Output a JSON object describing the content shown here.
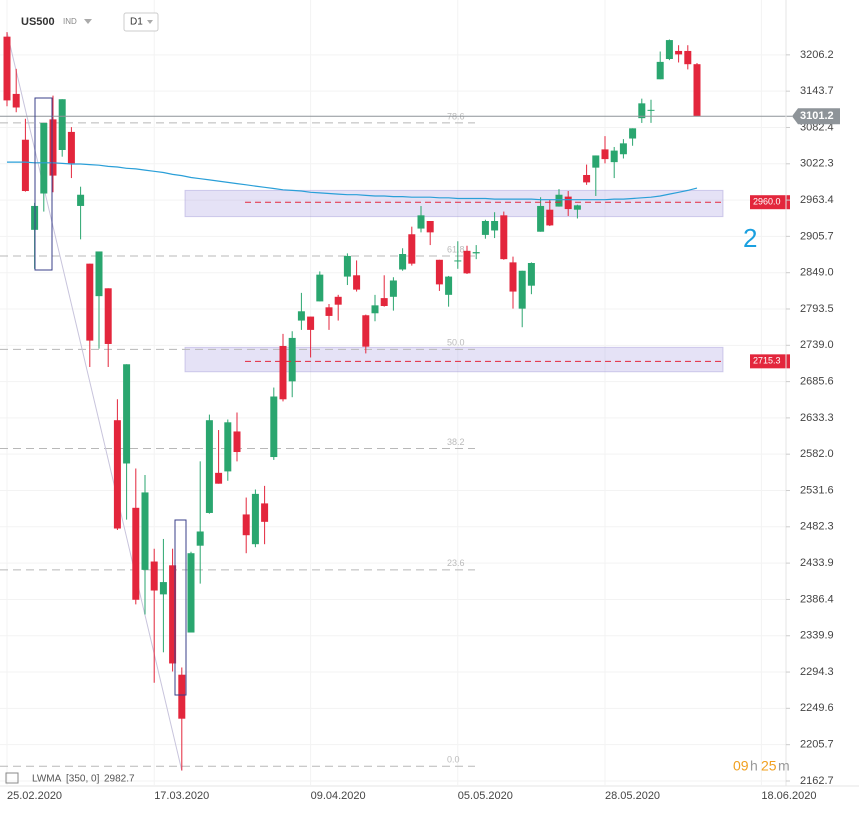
{
  "chart_data": {
    "type": "candlestick",
    "symbol": "US500",
    "symbol_type": "IND",
    "timeframe": "D1",
    "categories": [
      "25.02.2020",
      null,
      null,
      null,
      null,
      null,
      null,
      null,
      null,
      null,
      null,
      null,
      null,
      null,
      null,
      null,
      "17.03.2020",
      null,
      null,
      null,
      null,
      null,
      null,
      null,
      null,
      null,
      null,
      null,
      null,
      null,
      null,
      null,
      null,
      "09.04.2020",
      null,
      null,
      null,
      null,
      null,
      null,
      null,
      null,
      null,
      null,
      null,
      null,
      null,
      null,
      null,
      "05.05.2020",
      null,
      null,
      null,
      null,
      null,
      null,
      null,
      null,
      null,
      null,
      null,
      null,
      null,
      null,
      null,
      "28.05.2020",
      null,
      null,
      null,
      null,
      null,
      null,
      null,
      null,
      null,
      null,
      null,
      null,
      null,
      null,
      null,
      null,
      "18.06.2020"
    ],
    "open": [
      3238,
      3139,
      3062,
      2916,
      2974,
      3096,
      3045,
      3075,
      2954,
      2863,
      2813,
      2825,
      2630,
      2569,
      2508,
      2425,
      2436,
      2393,
      2431,
      2291,
      2344,
      2457,
      2501,
      2556,
      2558,
      2614,
      2499,
      2459,
      2514,
      2578,
      2738,
      2686,
      2776,
      2782,
      2805,
      2796,
      2812,
      2843,
      2845,
      2784,
      2787,
      2810,
      2812,
      2854,
      2909,
      2918,
      2930,
      2869,
      2815,
      2868,
      2883,
      2879,
      2908,
      2915,
      2939,
      2865,
      2794,
      2829,
      2913,
      2948,
      2953,
      2969,
      2948,
      3004,
      3016,
      3046,
      3025,
      3038,
      3064,
      3098,
      3111,
      3164,
      3199,
      3213,
      3213,
      3190,
      null,
      null,
      null,
      null,
      null,
      null,
      null
    ],
    "high": [
      3246,
      3182,
      3097,
      2959,
      3090,
      3136,
      3130,
      3083,
      2985,
      2863,
      2882,
      2825,
      2660,
      2711,
      2562,
      2553,
      2453,
      2466,
      2453,
      2300,
      2449,
      2572,
      2638,
      2616,
      2631,
      2641,
      2522,
      2533,
      2538,
      2677,
      2756,
      2760,
      2818,
      2782,
      2851,
      2801,
      2815,
      2879,
      2868,
      2785,
      2815,
      2845,
      2842,
      2887,
      2921,
      2954,
      2930,
      2869,
      2844,
      2898,
      2891,
      2892,
      2932,
      2944,
      2945,
      2874,
      2852,
      2865,
      2968,
      2964,
      2981,
      2978,
      2956,
      3021,
      3036,
      3068,
      3050,
      3063,
      3081,
      3131,
      3129,
      3212,
      3233,
      3223,
      3223,
      3192,
      null,
      null,
      null,
      null,
      null,
      null,
      null
    ],
    "low": [
      3118,
      3108,
      2977,
      2855,
      2945,
      2976,
      3034,
      2999,
      2901,
      2707,
      2734,
      2707,
      2478,
      2492,
      2380,
      2367,
      2281,
      2319,
      2295,
      2175,
      2344,
      2407,
      2500,
      2541,
      2545,
      2572,
      2447,
      2455,
      2459,
      2574,
      2657,
      2663,
      2762,
      2721,
      2805,
      2762,
      2776,
      2830,
      2820,
      2727,
      2775,
      2797,
      2791,
      2852,
      2860,
      2912,
      2892,
      2821,
      2797,
      2855,
      2847,
      2870,
      2902,
      2903,
      2869,
      2794,
      2766,
      2816,
      2913,
      2922,
      2953,
      2938,
      2934,
      2988,
      2970,
      3023,
      2999,
      3031,
      3052,
      3090,
      3090,
      3164,
      3197,
      3193,
      3181,
      3101,
      null,
      null,
      null,
      null,
      null,
      null,
      null
    ],
    "close": [
      3128,
      3116,
      2978,
      2954,
      3090,
      3003,
      3130,
      3023,
      2972,
      2746,
      2882,
      2741,
      2480,
      2711,
      2386,
      2529,
      2398,
      2409,
      2305,
      2237,
      2447,
      2476,
      2630,
      2541,
      2627,
      2585,
      2471,
      2527,
      2489,
      2664,
      2660,
      2750,
      2790,
      2762,
      2846,
      2783,
      2800,
      2875,
      2823,
      2737,
      2799,
      2798,
      2837,
      2878,
      2863,
      2939,
      2912,
      2831,
      2843,
      2868,
      2848,
      2881,
      2930,
      2930,
      2870,
      2820,
      2852,
      2864,
      2954,
      2923,
      2972,
      2949,
      2955,
      2992,
      3036,
      3030,
      3044,
      3056,
      3081,
      3123,
      3112,
      3194,
      3232,
      3207,
      3190,
      3101.2,
      null,
      null,
      null,
      null,
      null,
      null,
      null
    ],
    "colors": {
      "up": "#2aa66f",
      "down": "#e3263c"
    },
    "log_scale": true,
    "ylim": [
      2158,
      3303
    ],
    "yticks": [
      3206.2,
      3143.7,
      3082.4,
      3022.3,
      2963.4,
      2905.7,
      {
        "value": 2849,
        "label": "2849.0"
      },
      2793.5,
      {
        "value": 2739,
        "label": "2739.0"
      },
      2685.6,
      2633.3,
      {
        "value": 2582,
        "label": "2582.0"
      },
      2531.6,
      2482.3,
      2433.9,
      2386.4,
      2339.9,
      2294.3,
      2249.6,
      2205.7,
      2162.7
    ],
    "grid": true,
    "indicator": {
      "name": "LWMA",
      "params": "[350, 0]",
      "last_value": 2982.7,
      "color": "#2a9fd8",
      "values": [
        3025,
        3025,
        3025,
        3024,
        3024,
        3024,
        3023,
        3022,
        3022,
        3021,
        3020,
        3018,
        3017,
        3015,
        3014,
        3012,
        3010,
        3008,
        3005,
        3003,
        3000,
        2998,
        2996,
        2994,
        2992,
        2990,
        2988,
        2986,
        2984,
        2982,
        2980,
        2979,
        2978,
        2976,
        2975,
        2974,
        2973,
        2972,
        2972,
        2971,
        2970,
        2970,
        2969,
        2969,
        2968,
        2968,
        2968,
        2967,
        2967,
        2966,
        2966,
        2966,
        2966,
        2965,
        2965,
        2965,
        2965,
        2965,
        2964,
        2964,
        2964,
        2964,
        2964,
        2964,
        2964,
        2964,
        2965,
        2965,
        2966,
        2967,
        2968,
        2970,
        2973,
        2976,
        2979,
        2982.7,
        null,
        null,
        null,
        null,
        null,
        null,
        null
      ]
    },
    "current_price": 3101.2,
    "levels": [
      {
        "value": 2960,
        "label": "2960.0"
      },
      2715.3
    ],
    "zones": [
      [
        2937,
        2979
      ],
      [
        2700,
        2736
      ]
    ],
    "fibonacci": [
      {
        "value": 3090,
        "label": "78.6"
      },
      {
        "value": 2875,
        "label": "61.8"
      },
      {
        "value": 2733,
        "label": "50.0"
      },
      {
        "value": 2590,
        "label": "38.2"
      },
      {
        "value": 2425,
        "label": "23.6"
      },
      {
        "value": 2180,
        "label": "0.0"
      }
    ],
    "annotation": "2",
    "countdown": {
      "hours": "09",
      "hours_unit": "h",
      "minutes": "25",
      "minutes_unit": "m"
    }
  }
}
